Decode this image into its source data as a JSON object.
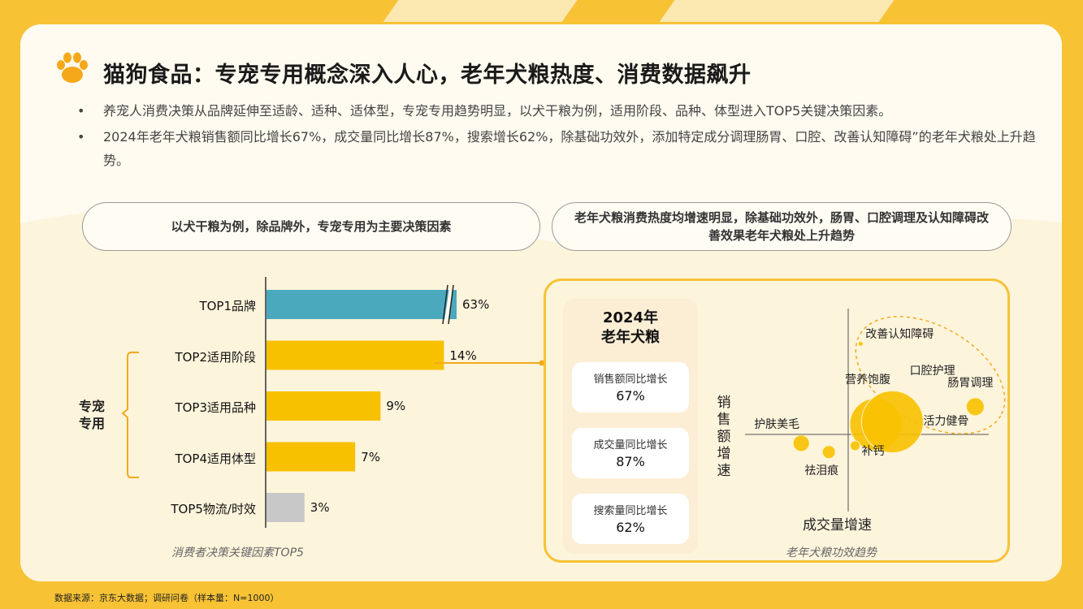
{
  "title": "猫狗食品：专宠专用概念深入人心，老年犬粮热度、消费数据飙升",
  "bullets": [
    "养宠人消费决策从品牌延伸至适龄、适种、适体型，专宠专用趋势明显，以犬干粮为例，适用阶段、品种、体型进入TOP5关键决策因素。",
    "2024年老年犬粮销售额同比增长67%，成交量同比增长87%，搜索增长62%，除基础功效外，添加特定成分调理肠胃、口腔、改善认知障碍”的老年犬粮处上升趋势。"
  ],
  "bullet_mark": "•",
  "left_pill": "以犬干粮为例，除品牌外，专宠专用为主要决策因素",
  "right_pill": "老年犬粮消费热度均增速明显，除基础功效外，肠胃、口腔调理及认知障碍改善效果老年犬粮处上升趋势",
  "bracket_label": "专宠专用",
  "chart_data": [
    {
      "type": "bar",
      "orientation": "horizontal",
      "title": "消费者决策关键因素TOP5",
      "categories": [
        "TOP1品牌",
        "TOP2适用阶段",
        "TOP3适用品种",
        "TOP4适用体型",
        "TOP5物流/时效"
      ],
      "values": [
        63,
        14,
        9,
        7,
        3
      ],
      "value_labels": [
        "63%",
        "14%",
        "9%",
        "7%",
        "3%"
      ],
      "colors": [
        "#4BA9BE",
        "#F8C100",
        "#F8C100",
        "#F8C100",
        "#C8C8C8"
      ],
      "axis_break_on_first_bar": true
    },
    {
      "type": "scatter",
      "title": "老年犬粮功效趋势",
      "xlabel": "成交量增速",
      "ylabel": "销售额增速",
      "points": [
        {
          "name": "营养饱腹",
          "x": 1.0,
          "y": 0.4,
          "size": 32
        },
        {
          "name": "活力健骨",
          "x": 1.6,
          "y": 0.5,
          "size": 38
        },
        {
          "name": "肠胃调理",
          "x": 4.6,
          "y": 1.1,
          "size": 11
        },
        {
          "name": "改善认知障碍",
          "x": 0.45,
          "y": 3.6,
          "size": 3
        },
        {
          "name": "口腔护理",
          "x": 3.4,
          "y": 2.5,
          "size": 0
        },
        {
          "name": "护肤美毛",
          "x": -1.7,
          "y": -0.35,
          "size": 10
        },
        {
          "name": "祛泪痕",
          "x": -0.7,
          "y": -0.7,
          "size": 8
        },
        {
          "name": "补钙",
          "x": 0.25,
          "y": -0.45,
          "size": 6
        }
      ]
    }
  ],
  "kpi": {
    "title_line1": "2024年",
    "title_line2": "老年犬粮",
    "items": [
      {
        "label": "销售额同比增长",
        "value": "67%"
      },
      {
        "label": "成交量同比增长",
        "value": "87%"
      },
      {
        "label": "搜索量同比增长",
        "value": "62%"
      }
    ]
  },
  "footer": "数据来源：京东大数据；调研问卷（样本量：N=1000）",
  "colors": {
    "accent": "#F7C234",
    "bar_top1": "#4BA9BE",
    "bar_yellow": "#F8C100",
    "bar_gray": "#C8C8C8"
  }
}
